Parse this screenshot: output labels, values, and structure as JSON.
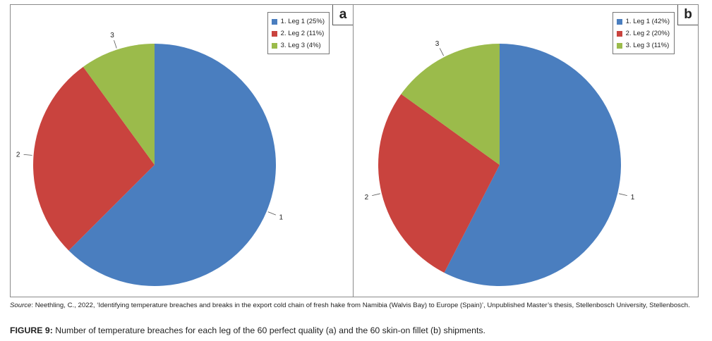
{
  "chart_data": [
    {
      "type": "pie",
      "panel_label": "a",
      "legend_placement": "top-right",
      "slices": [
        {
          "label": "1",
          "legend": "1. Leg 1 (25%)",
          "value": 25,
          "color": "#4a7ebf"
        },
        {
          "label": "2",
          "legend": "2. Leg 2 (11%)",
          "value": 11,
          "color": "#c9433e"
        },
        {
          "label": "3",
          "legend": "3. Leg 3 (4%)",
          "value": 4,
          "color": "#9bbb4b"
        }
      ]
    },
    {
      "type": "pie",
      "panel_label": "b",
      "legend_placement": "top-right",
      "slices": [
        {
          "label": "1",
          "legend": "1. Leg 1 (42%)",
          "value": 42,
          "color": "#4a7ebf"
        },
        {
          "label": "2",
          "legend": "2. Leg 2 (20%)",
          "value": 20,
          "color": "#c9433e"
        },
        {
          "label": "3",
          "legend": "3. Leg 3 (11%)",
          "value": 11,
          "color": "#9bbb4b"
        }
      ]
    }
  ],
  "source": {
    "label": "Source",
    "text": ": Neethling, C., 2022, ‘Identifying temperature breaches and breaks in the export cold chain of fresh hake from Namibia (Walvis Bay) to Europe (Spain)’, Unpublished Master’s thesis, Stellenbosch University, Stellenbosch."
  },
  "caption": {
    "label": "FIGURE 9:",
    "text": " Number of temperature breaches for each leg of the 60 perfect quality (a) and the 60 skin-on fillet (b) shipments."
  }
}
